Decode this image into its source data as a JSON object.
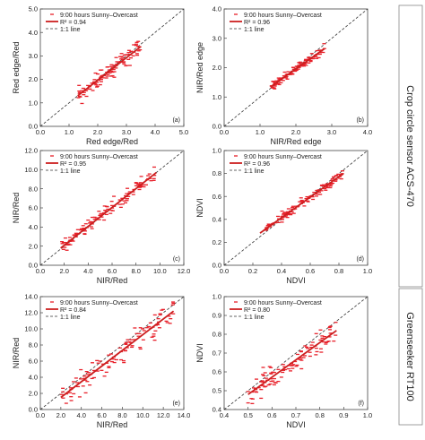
{
  "style": {
    "point_color": "#e8202a",
    "fit_color": "#cc1f1f",
    "ref_color": "#333333"
  },
  "side_labels": [
    {
      "text": "Crop circle sensor ACS-470",
      "spans_rows": [
        0,
        1
      ]
    },
    {
      "text": "Greenseeker RT100",
      "spans_rows": [
        2
      ]
    }
  ],
  "chart_data": [
    {
      "type": "scatter",
      "panel_label": "(a)",
      "row": 0,
      "col": 0,
      "xlabel": "Red edge/Red",
      "ylabel": "Red edge/Red",
      "xlim": [
        0.0,
        5.0
      ],
      "ylim": [
        0.0,
        5.0
      ],
      "xticks": [
        "0.0",
        "1.0",
        "2.0",
        "3.0",
        "4.0",
        "5.0"
      ],
      "yticks": [
        "0.0",
        "1.0",
        "2.0",
        "3.0",
        "4.0",
        "5.0"
      ],
      "legend": {
        "series": "9:00 hours Sunny–Overcast",
        "fit": "R² = 0.94",
        "ref": "1:1 line"
      },
      "fit": {
        "x": [
          1.3,
          3.5
        ],
        "y": [
          1.3,
          3.4
        ]
      },
      "points": {
        "x_range": [
          1.3,
          3.5
        ],
        "slope": 0.95,
        "intercept": 0.07,
        "spread": 0.22,
        "count": 110,
        "seed": 11
      }
    },
    {
      "type": "scatter",
      "panel_label": "(b)",
      "row": 0,
      "col": 1,
      "xlabel": "NIR/Red edge",
      "ylabel": "NIR/Red edge",
      "xlim": [
        0.0,
        4.0
      ],
      "ylim": [
        0.0,
        4.0
      ],
      "xticks": [
        "0.0",
        "1.0",
        "2.0",
        "3.0",
        "4.0"
      ],
      "yticks": [
        "0.0",
        "1.0",
        "2.0",
        "3.0",
        "4.0"
      ],
      "legend": {
        "series": "9:00 hours Sunny–Overcast",
        "fit": "R² = 0.96",
        "ref": "1:1 line"
      },
      "fit": {
        "x": [
          1.3,
          2.8
        ],
        "y": [
          1.35,
          2.65
        ]
      },
      "points": {
        "x_range": [
          1.3,
          2.8
        ],
        "slope": 0.87,
        "intercept": 0.22,
        "spread": 0.1,
        "count": 110,
        "seed": 23
      }
    },
    {
      "type": "scatter",
      "panel_label": "(c)",
      "row": 1,
      "col": 0,
      "xlabel": "NIR/Red",
      "ylabel": "NIR/Red",
      "xlim": [
        0.0,
        12.0
      ],
      "ylim": [
        0.0,
        12.0
      ],
      "xticks": [
        "0.0",
        "2.0",
        "4.0",
        "6.0",
        "8.0",
        "10.0",
        "12.0"
      ],
      "yticks": [
        "0.0",
        "2.0",
        "4.0",
        "6.0",
        "8.0",
        "10.0",
        "12.0"
      ],
      "legend": {
        "series": "9:00 hours Sunny–Overcast",
        "fit": "R² = 0.95",
        "ref": "1:1 line"
      },
      "fit": {
        "x": [
          1.7,
          9.7
        ],
        "y": [
          1.8,
          9.7
        ]
      },
      "points": {
        "x_range": [
          1.7,
          9.7
        ],
        "slope": 0.99,
        "intercept": 0.12,
        "spread": 0.45,
        "count": 120,
        "seed": 37
      }
    },
    {
      "type": "scatter",
      "panel_label": "(d)",
      "row": 1,
      "col": 1,
      "xlabel": "NDVI",
      "ylabel": "NDVI",
      "xlim": [
        0.0,
        1.0
      ],
      "ylim": [
        0.0,
        1.0
      ],
      "xticks": [
        "0.0",
        "0.2",
        "0.4",
        "0.6",
        "0.8",
        "1.0"
      ],
      "yticks": [
        "0.0",
        "0.2",
        "0.4",
        "0.6",
        "0.8",
        "1.0"
      ],
      "legend": {
        "series": "9:00 hours Sunny–Overcast",
        "fit": "R² = 0.96",
        "ref": "1:1 line"
      },
      "fit": {
        "x": [
          0.25,
          0.83
        ],
        "y": [
          0.28,
          0.8
        ]
      },
      "points": {
        "x_range": [
          0.28,
          0.83
        ],
        "slope": 0.9,
        "intercept": 0.055,
        "spread": 0.025,
        "count": 120,
        "seed": 41
      }
    },
    {
      "type": "scatter",
      "panel_label": "(e)",
      "row": 2,
      "col": 0,
      "xlabel": "NIR/Red",
      "ylabel": "NIR/Red",
      "xlim": [
        0.0,
        14.0
      ],
      "ylim": [
        0.0,
        14.0
      ],
      "xticks": [
        "0.0",
        "2.0",
        "4.0",
        "6.0",
        "8.0",
        "10.0",
        "12.0",
        "14.0"
      ],
      "yticks": [
        "0.0",
        "2.0",
        "4.0",
        "6.0",
        "8.0",
        "10.0",
        "12.0",
        "14.0"
      ],
      "legend": {
        "series": "9:00 hours Sunny–Overcast",
        "fit": "R² = 0.84",
        "ref": "1:1 line"
      },
      "fit": {
        "x": [
          2.0,
          13.0
        ],
        "y": [
          1.5,
          12.2
        ]
      },
      "points": {
        "x_range": [
          2.0,
          13.0
        ],
        "slope": 0.97,
        "intercept": -0.45,
        "spread": 1.1,
        "count": 110,
        "seed": 53
      }
    },
    {
      "type": "scatter",
      "panel_label": "(f)",
      "row": 2,
      "col": 1,
      "xlabel": "NDVI",
      "ylabel": "NDVI",
      "xlim": [
        0.4,
        1.0
      ],
      "ylim": [
        0.4,
        1.0
      ],
      "xticks": [
        "0.4",
        "0.5",
        "0.6",
        "0.7",
        "0.8",
        "0.9",
        "1.0"
      ],
      "yticks": [
        "0.4",
        "0.5",
        "0.6",
        "0.7",
        "0.8",
        "0.9",
        "1.0"
      ],
      "legend": {
        "series": "9:00 hours Sunny–Overcast",
        "fit": "R² = 0.80",
        "ref": "1:1 line"
      },
      "fit": {
        "x": [
          0.5,
          0.87
        ],
        "y": [
          0.48,
          0.82
        ]
      },
      "points": {
        "x_range": [
          0.5,
          0.87
        ],
        "slope": 0.92,
        "intercept": 0.02,
        "spread": 0.04,
        "count": 110,
        "seed": 67
      }
    }
  ]
}
